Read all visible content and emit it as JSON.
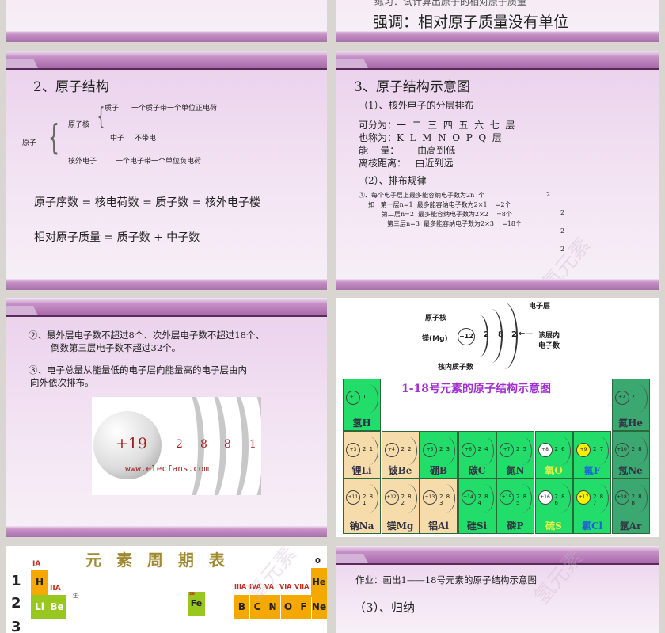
{
  "slide_top_left": {},
  "slide_top_right": {
    "partial_line": "练习：试计算出原子的相对原子质量",
    "emphasis": "强调：相对原子质量没有单位"
  },
  "slide_structure": {
    "title": "2、原子结构",
    "atom": "原子",
    "nucleus": "原子核",
    "proton": "质子",
    "proton_desc": "一个质子带一个单位正电荷",
    "neutron": "中子",
    "neutron_desc": "不带电",
    "electron": "核外电子",
    "electron_desc": "一个电子带一个单位负电荷",
    "formula1": "原子序数 = 核电荷数 = 质子数 = 核外电子楼",
    "formula2": "相对原子质量 = 质子数 + 中子数"
  },
  "slide_diagram": {
    "title": "3、原子结构示意图",
    "sub1": "（1）、核外电子的分层排布",
    "line1": "可分为：一  二  三  四  五  六  七  层",
    "line2": "也称为：K  L  M  N  O  P  Q  层",
    "line3": "能    量：      由高到低",
    "line4": "离核距离：   由近到远",
    "sub2": "（2）、排布规律",
    "rule1": "①、每个电子层上最多能容纳电子数为2n  个",
    "ex1": "如   第一层n=1  最多能容纳电子数为2×1    =2个",
    "ex2": "第二层n=2  最多能容纳电子数为2×2    =8个",
    "ex3": "第三层n=3  最多能容纳电子数为2×3    =18个",
    "sup": [
      "2",
      "2",
      "2",
      "2"
    ],
    "watermark": "氢元素"
  },
  "slide_rules": {
    "rule2a": "②、最外层电子数不超过8个、次外层电子数不超过18个、",
    "rule2b": "倒数第三层电子数不超过32个。",
    "rule3a": "③、电子总量从能量低的电子层向能量高的电子层由内",
    "rule3b": "向外依次排布。",
    "nucleus": "+19",
    "shells": [
      "2",
      "8",
      "8",
      "1"
    ],
    "credit": "www.elecfans.com"
  },
  "slide_table18": {
    "mg_label": "镁(Mg)",
    "mg_nucleus": "+12",
    "mg_shells": [
      "2",
      "8",
      "2"
    ],
    "lbl_nucleus": "原子核",
    "lbl_shell": "电子层",
    "lbl_count1": "该层内",
    "lbl_count2": "电子数",
    "lbl_protons": "核内质子数",
    "title": "1-18号元素的原子结构示意图",
    "title_color": "#a030d0",
    "colors": {
      "metal": "#f5dcaa",
      "nonmetal": "#22dd6a",
      "noble": "#3aa870"
    },
    "elements": [
      {
        "name": "氢H",
        "z": "+1",
        "shells": "1",
        "type": "nonmetal"
      },
      {
        "name": "氦He",
        "z": "+2",
        "shells": "2",
        "type": "noble"
      },
      {
        "name": "锂Li",
        "z": "+3",
        "shells": "2 1",
        "type": "metal"
      },
      {
        "name": "铍Be",
        "z": "+4",
        "shells": "2 2",
        "type": "metal"
      },
      {
        "name": "硼B",
        "z": "+5",
        "shells": "2 3",
        "type": "nonmetal"
      },
      {
        "name": "碳C",
        "z": "+6",
        "shells": "2 4",
        "type": "nonmetal"
      },
      {
        "name": "氮N",
        "z": "+7",
        "shells": "2 5",
        "type": "nonmetal"
      },
      {
        "name": "氧O",
        "z": "+8",
        "shells": "2 6",
        "type": "nonmetal",
        "hl": "white",
        "label": "#e8f040"
      },
      {
        "name": "氟F",
        "z": "+9",
        "shells": "2 7",
        "type": "nonmetal",
        "hl": "yellow",
        "label": "#2060e0"
      },
      {
        "name": "氖Ne",
        "z": "+10",
        "shells": "2 8",
        "type": "noble"
      },
      {
        "name": "钠Na",
        "z": "+11",
        "shells": "2 8 1",
        "type": "metal"
      },
      {
        "name": "镁Mg",
        "z": "+12",
        "shells": "2 8 2",
        "type": "metal"
      },
      {
        "name": "铝Al",
        "z": "+13",
        "shells": "2 8 3",
        "type": "metal"
      },
      {
        "name": "硅Si",
        "z": "+14",
        "shells": "2 8 4",
        "type": "nonmetal"
      },
      {
        "name": "磷P",
        "z": "+15",
        "shells": "2 8 5",
        "type": "nonmetal"
      },
      {
        "name": "硫S",
        "z": "+16",
        "shells": "2 8 6",
        "type": "nonmetal",
        "hl": "white",
        "label": "#e8f040"
      },
      {
        "name": "氯Cl",
        "z": "+17",
        "shells": "2 8 7",
        "type": "nonmetal",
        "hl": "yellow",
        "label": "#2060e0"
      },
      {
        "name": "氩Ar",
        "z": "+18",
        "shells": "2 8 8",
        "type": "noble"
      }
    ]
  },
  "slide_periodic": {
    "title": "元 素 周 期 表",
    "group_ia": "IA",
    "group_iia": "IIA",
    "groups_right": [
      "IIIA",
      "IVA",
      "VA",
      "VIA",
      "VIIA"
    ],
    "group_0": "0",
    "periods": [
      "1",
      "2",
      "3"
    ],
    "note": "注:",
    "legend_symbol": "Fe",
    "legend_number": "26",
    "cells": [
      "H",
      "Li",
      "Be",
      "He",
      "B",
      "C",
      "N",
      "O",
      "F",
      "Ne"
    ]
  },
  "slide_homework": {
    "homework": "作业：画出1——18号元素的原子结构示意图",
    "sub3": "（3）、归纳",
    "watermark": "氢元素"
  }
}
